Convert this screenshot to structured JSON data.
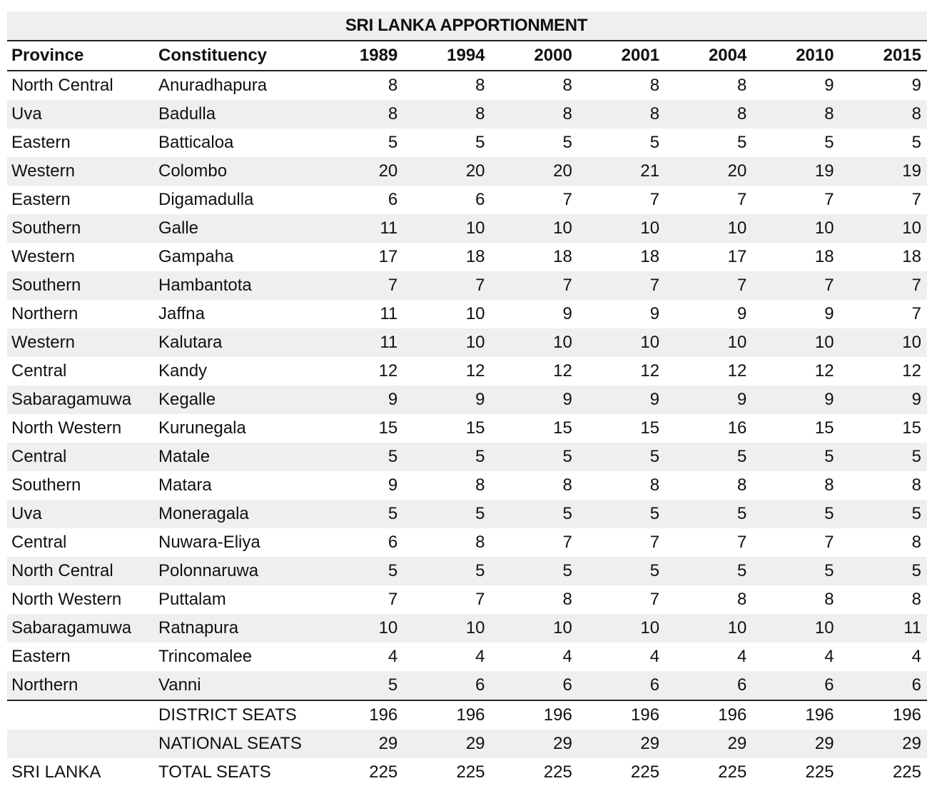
{
  "title": "SRI LANKA APPORTIONMENT",
  "headers": {
    "province": "Province",
    "constituency": "Constituency",
    "years": [
      "1989",
      "1994",
      "2000",
      "2001",
      "2004",
      "2010",
      "2015"
    ]
  },
  "rows": [
    {
      "province": "North Central",
      "constituency": "Anuradhapura",
      "values": [
        "8",
        "8",
        "8",
        "8",
        "8",
        "9",
        "9"
      ]
    },
    {
      "province": "Uva",
      "constituency": "Badulla",
      "values": [
        "8",
        "8",
        "8",
        "8",
        "8",
        "8",
        "8"
      ]
    },
    {
      "province": "Eastern",
      "constituency": "Batticaloa",
      "values": [
        "5",
        "5",
        "5",
        "5",
        "5",
        "5",
        "5"
      ]
    },
    {
      "province": "Western",
      "constituency": "Colombo",
      "values": [
        "20",
        "20",
        "20",
        "21",
        "20",
        "19",
        "19"
      ]
    },
    {
      "province": "Eastern",
      "constituency": "Digamadulla",
      "values": [
        "6",
        "6",
        "7",
        "7",
        "7",
        "7",
        "7"
      ]
    },
    {
      "province": "Southern",
      "constituency": "Galle",
      "values": [
        "11",
        "10",
        "10",
        "10",
        "10",
        "10",
        "10"
      ]
    },
    {
      "province": "Western",
      "constituency": "Gampaha",
      "values": [
        "17",
        "18",
        "18",
        "18",
        "17",
        "18",
        "18"
      ]
    },
    {
      "province": "Southern",
      "constituency": "Hambantota",
      "values": [
        "7",
        "7",
        "7",
        "7",
        "7",
        "7",
        "7"
      ]
    },
    {
      "province": "Northern",
      "constituency": "Jaffna",
      "values": [
        "11",
        "10",
        "9",
        "9",
        "9",
        "9",
        "7"
      ]
    },
    {
      "province": "Western",
      "constituency": "Kalutara",
      "values": [
        "11",
        "10",
        "10",
        "10",
        "10",
        "10",
        "10"
      ]
    },
    {
      "province": "Central",
      "constituency": "Kandy",
      "values": [
        "12",
        "12",
        "12",
        "12",
        "12",
        "12",
        "12"
      ]
    },
    {
      "province": "Sabaragamuwa",
      "constituency": "Kegalle",
      "values": [
        "9",
        "9",
        "9",
        "9",
        "9",
        "9",
        "9"
      ]
    },
    {
      "province": "North Western",
      "constituency": "Kurunegala",
      "values": [
        "15",
        "15",
        "15",
        "15",
        "16",
        "15",
        "15"
      ]
    },
    {
      "province": "Central",
      "constituency": "Matale",
      "values": [
        "5",
        "5",
        "5",
        "5",
        "5",
        "5",
        "5"
      ]
    },
    {
      "province": "Southern",
      "constituency": "Matara",
      "values": [
        "9",
        "8",
        "8",
        "8",
        "8",
        "8",
        "8"
      ]
    },
    {
      "province": "Uva",
      "constituency": "Moneragala",
      "values": [
        "5",
        "5",
        "5",
        "5",
        "5",
        "5",
        "5"
      ]
    },
    {
      "province": "Central",
      "constituency": "Nuwara-Eliya",
      "values": [
        "6",
        "8",
        "7",
        "7",
        "7",
        "7",
        "8"
      ]
    },
    {
      "province": "North Central",
      "constituency": "Polonnaruwa",
      "values": [
        "5",
        "5",
        "5",
        "5",
        "5",
        "5",
        "5"
      ]
    },
    {
      "province": "North Western",
      "constituency": "Puttalam",
      "values": [
        "7",
        "7",
        "8",
        "7",
        "8",
        "8",
        "8"
      ]
    },
    {
      "province": "Sabaragamuwa",
      "constituency": "Ratnapura",
      "values": [
        "10",
        "10",
        "10",
        "10",
        "10",
        "10",
        "11"
      ]
    },
    {
      "province": "Eastern",
      "constituency": "Trincomalee",
      "values": [
        "4",
        "4",
        "4",
        "4",
        "4",
        "4",
        "4"
      ]
    },
    {
      "province": "Northern",
      "constituency": "Vanni",
      "values": [
        "5",
        "6",
        "6",
        "6",
        "6",
        "6",
        "6"
      ]
    }
  ],
  "totals": {
    "district": {
      "province": "",
      "label": "DISTRICT SEATS",
      "values": [
        "196",
        "196",
        "196",
        "196",
        "196",
        "196",
        "196"
      ]
    },
    "national": {
      "province": "",
      "label": "NATIONAL SEATS",
      "values": [
        "29",
        "29",
        "29",
        "29",
        "29",
        "29",
        "29"
      ]
    },
    "total": {
      "province": "SRI LANKA",
      "label": "TOTAL SEATS",
      "values": [
        "225",
        "225",
        "225",
        "225",
        "225",
        "225",
        "225"
      ]
    }
  }
}
